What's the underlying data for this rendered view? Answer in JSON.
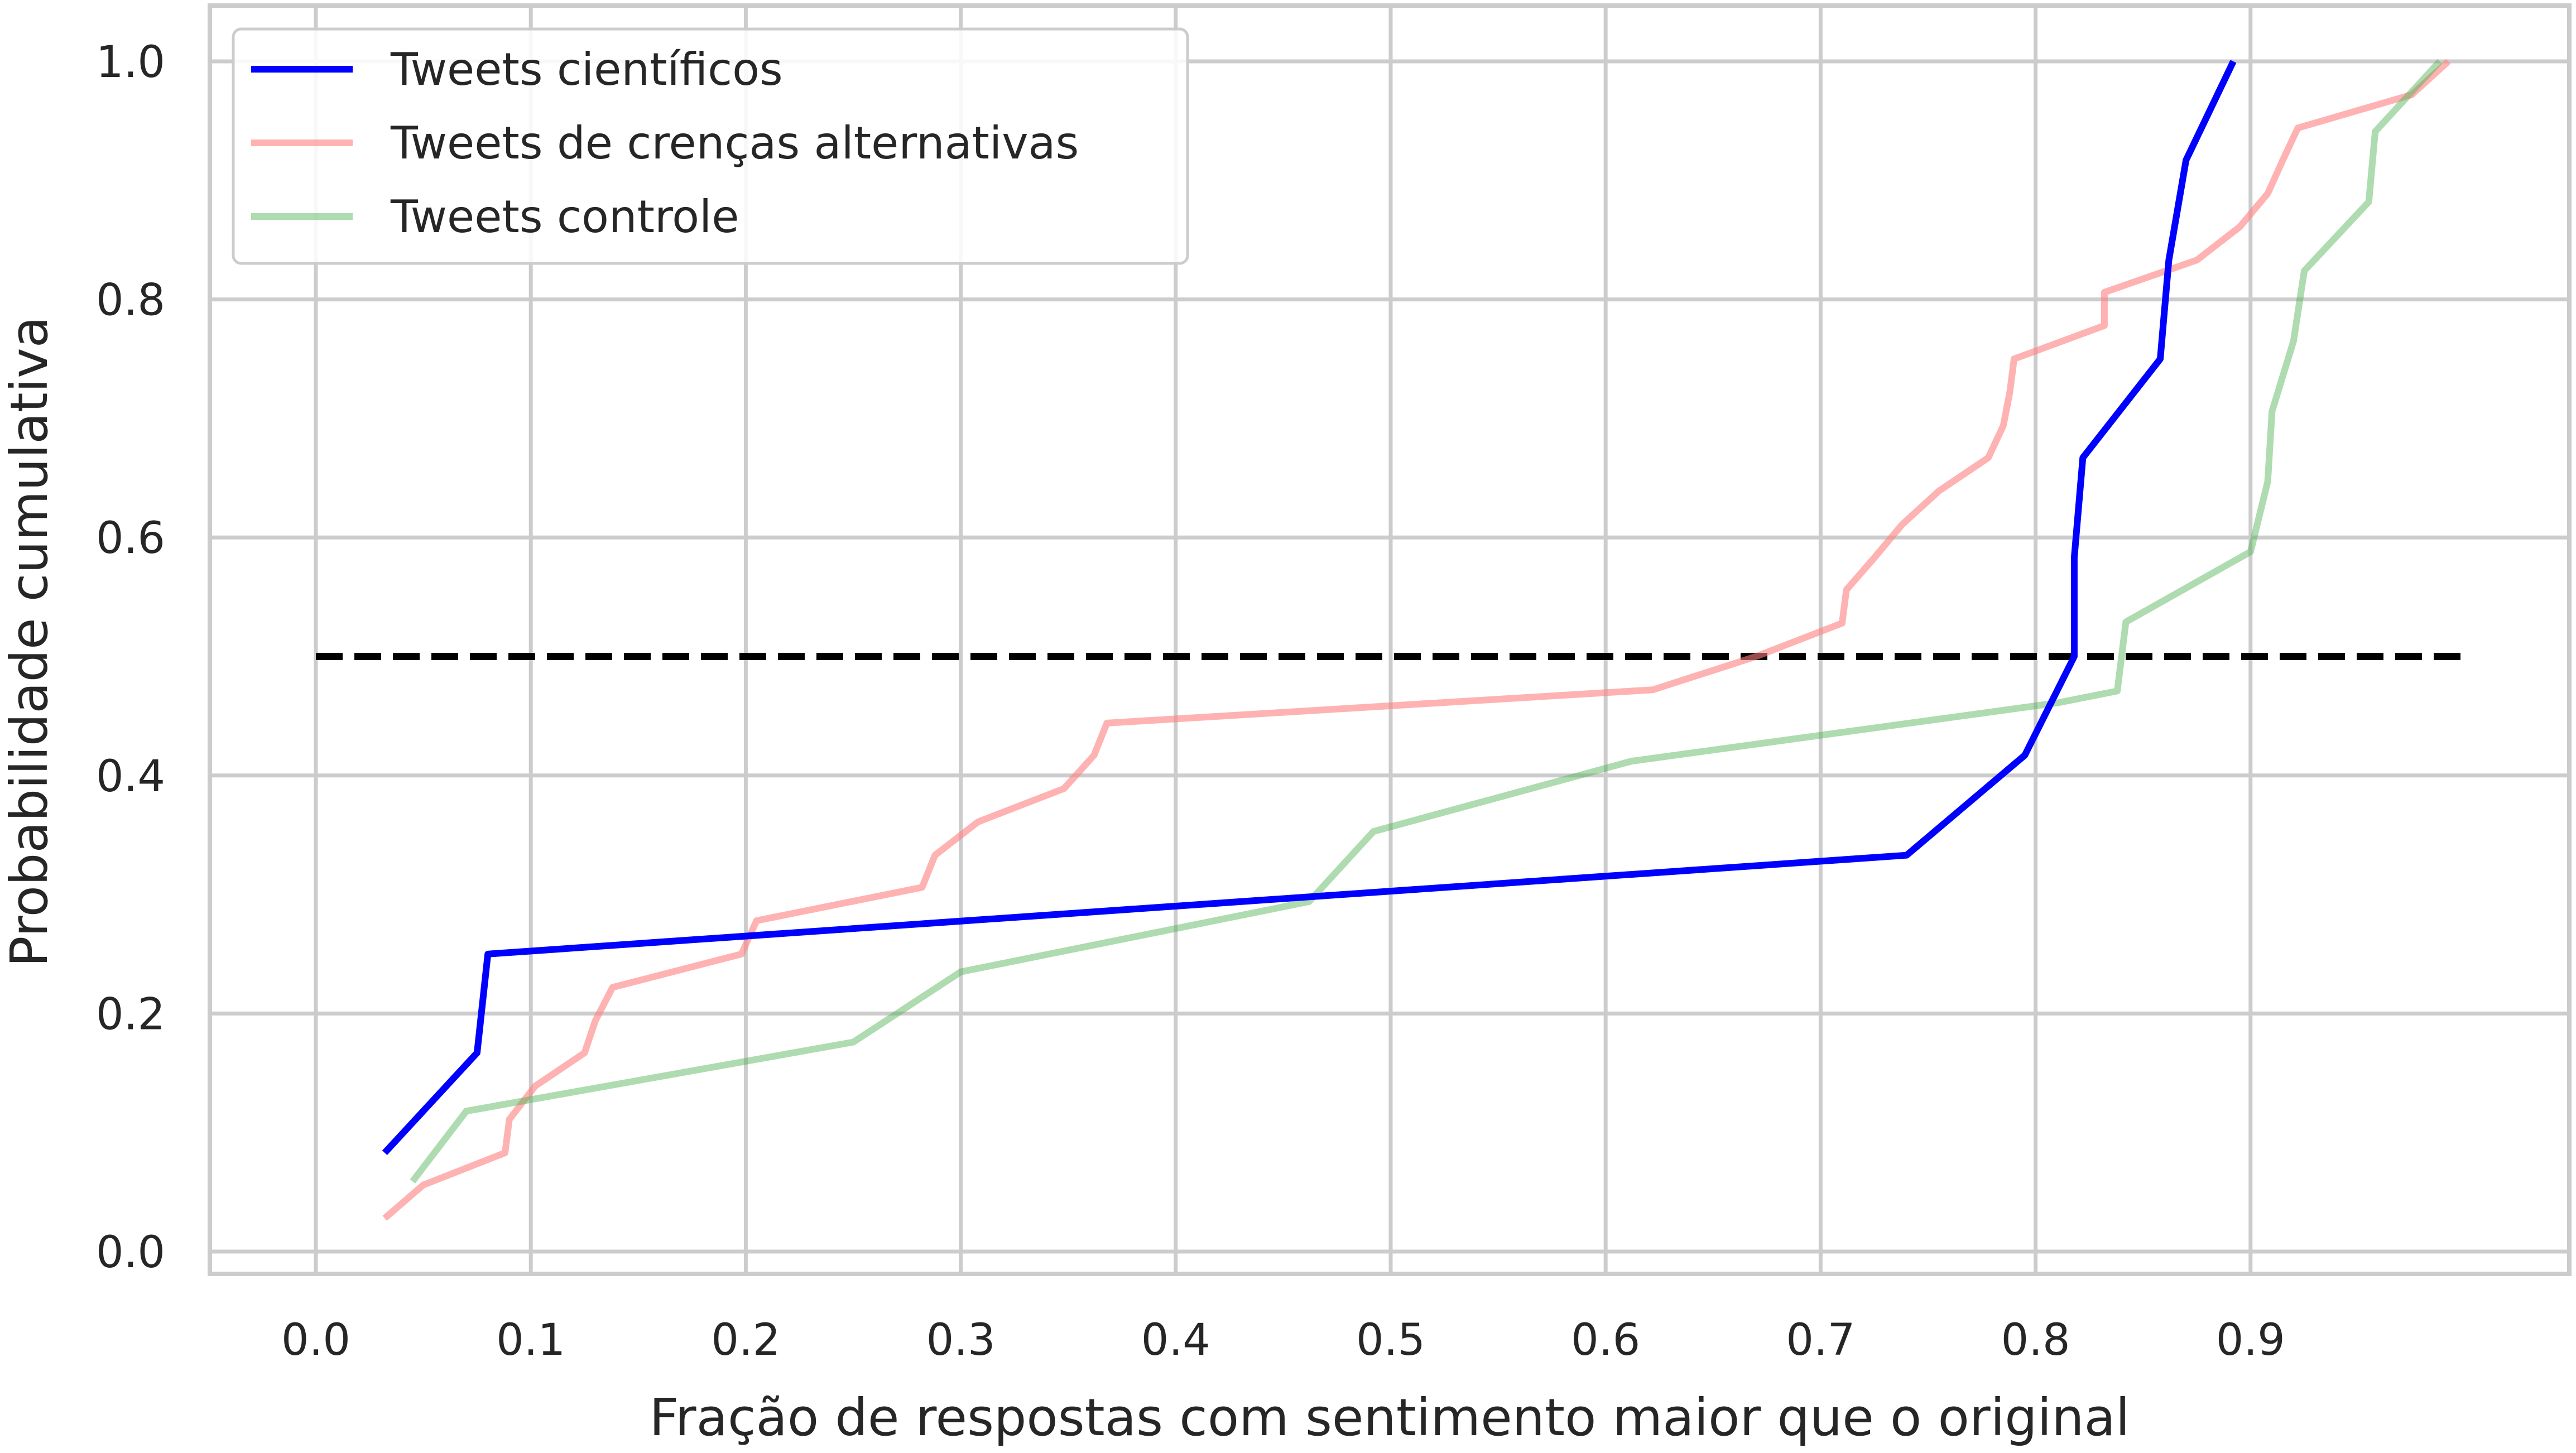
{
  "chart_data": {
    "type": "line",
    "title": "",
    "xlabel": "Fração de respostas com sentimento maior que o original",
    "ylabel": "Probabilidade cumulativa",
    "xlim": [
      -0.05,
      1.05
    ],
    "ylim": [
      -0.02,
      1.05
    ],
    "xticks": [
      0.0,
      0.1,
      0.2,
      0.3,
      0.4,
      0.5,
      0.6,
      0.7,
      0.8,
      0.9
    ],
    "xtick_labels": [
      "0.0",
      "0.1",
      "0.2",
      "0.3",
      "0.4",
      "0.5",
      "0.6",
      "0.7",
      "0.8",
      "0.9"
    ],
    "yticks": [
      0.0,
      0.2,
      0.4,
      0.6,
      0.8,
      1.0
    ],
    "ytick_labels": [
      "0.0",
      "0.2",
      "0.4",
      "0.6",
      "0.8",
      "1.0"
    ],
    "grid": true,
    "legend_position": "top-left",
    "reference_line": {
      "y": 0.5,
      "x_range": [
        0.0,
        1.0
      ],
      "style": "dashed",
      "color": "#000000"
    },
    "series": [
      {
        "name": "Tweets científicos",
        "color": "#0000ff",
        "opacity": 1.0,
        "points": [
          [
            0.032,
            0.083
          ],
          [
            0.075,
            0.167
          ],
          [
            0.08,
            0.25
          ],
          [
            0.74,
            0.333
          ],
          [
            0.795,
            0.417
          ],
          [
            0.818,
            0.5
          ],
          [
            0.818,
            0.583
          ],
          [
            0.822,
            0.667
          ],
          [
            0.858,
            0.75
          ],
          [
            0.862,
            0.833
          ],
          [
            0.87,
            0.917
          ],
          [
            0.892,
            1.0
          ]
        ]
      },
      {
        "name": "Tweets de crenças alternativas",
        "color": "#ff7f7f",
        "opacity": 0.6,
        "points": [
          [
            0.032,
            0.028
          ],
          [
            0.05,
            0.056
          ],
          [
            0.088,
            0.083
          ],
          [
            0.09,
            0.111
          ],
          [
            0.102,
            0.139
          ],
          [
            0.125,
            0.167
          ],
          [
            0.13,
            0.194
          ],
          [
            0.138,
            0.222
          ],
          [
            0.198,
            0.25
          ],
          [
            0.205,
            0.278
          ],
          [
            0.282,
            0.306
          ],
          [
            0.288,
            0.333
          ],
          [
            0.308,
            0.361
          ],
          [
            0.348,
            0.389
          ],
          [
            0.362,
            0.417
          ],
          [
            0.368,
            0.444
          ],
          [
            0.622,
            0.472
          ],
          [
            0.67,
            0.5
          ],
          [
            0.71,
            0.528
          ],
          [
            0.712,
            0.556
          ],
          [
            0.725,
            0.583
          ],
          [
            0.738,
            0.611
          ],
          [
            0.755,
            0.639
          ],
          [
            0.778,
            0.667
          ],
          [
            0.785,
            0.694
          ],
          [
            0.788,
            0.722
          ],
          [
            0.79,
            0.75
          ],
          [
            0.832,
            0.778
          ],
          [
            0.832,
            0.806
          ],
          [
            0.875,
            0.833
          ],
          [
            0.895,
            0.861
          ],
          [
            0.908,
            0.889
          ],
          [
            0.915,
            0.917
          ],
          [
            0.922,
            0.944
          ],
          [
            0.975,
            0.972
          ],
          [
            0.992,
            1.0
          ]
        ]
      },
      {
        "name": "Tweets controle",
        "color": "#4caf50",
        "opacity": 0.45,
        "points": [
          [
            0.045,
            0.059
          ],
          [
            0.07,
            0.118
          ],
          [
            0.25,
            0.176
          ],
          [
            0.3,
            0.235
          ],
          [
            0.462,
            0.294
          ],
          [
            0.492,
            0.353
          ],
          [
            0.612,
            0.412
          ],
          [
            0.81,
            0.461
          ],
          [
            0.838,
            0.471
          ],
          [
            0.842,
            0.529
          ],
          [
            0.9,
            0.588
          ],
          [
            0.908,
            0.647
          ],
          [
            0.91,
            0.706
          ],
          [
            0.92,
            0.765
          ],
          [
            0.925,
            0.824
          ],
          [
            0.955,
            0.882
          ],
          [
            0.958,
            0.941
          ],
          [
            0.988,
            1.0
          ]
        ]
      }
    ]
  }
}
